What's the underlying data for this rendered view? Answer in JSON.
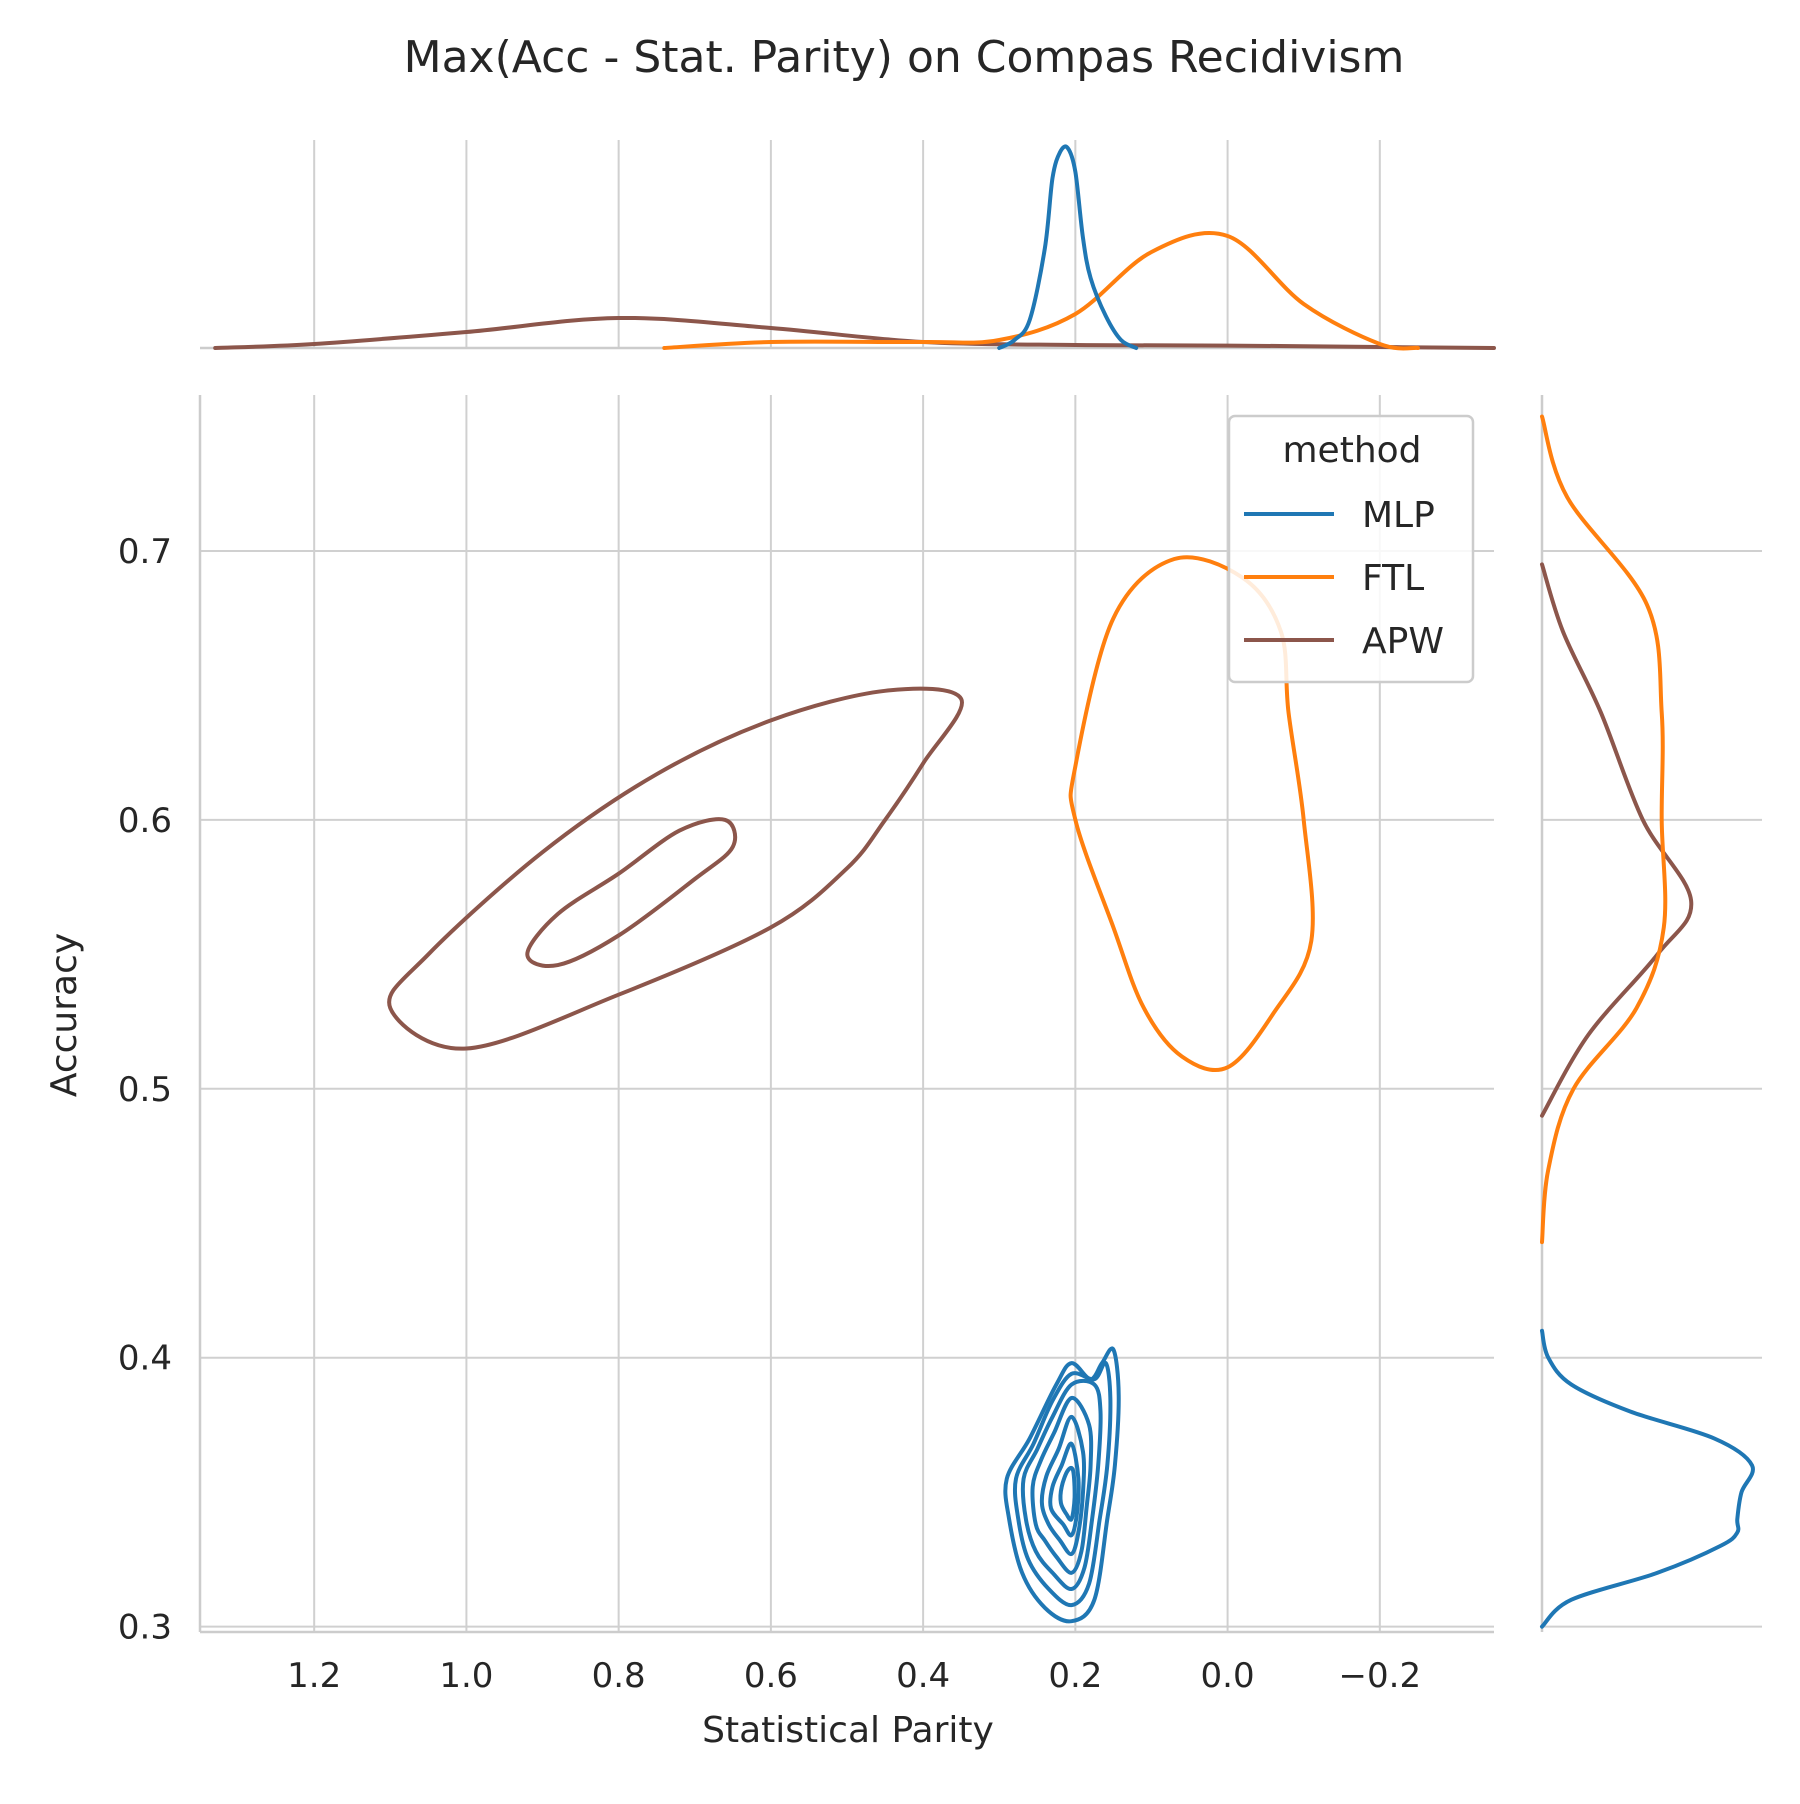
{
  "chart_data": {
    "type": "joint-kde",
    "title": "Max(Acc - Stat. Parity) on Compas Recidivism",
    "xlabel": "Statistical Parity",
    "ylabel": "Accuracy",
    "xlim": [
      1.35,
      -0.35
    ],
    "ylim": [
      0.298,
      0.758
    ],
    "x_ticks": [
      1.2,
      1.0,
      0.8,
      0.6,
      0.4,
      0.2,
      0.0,
      -0.2
    ],
    "x_tick_labels": [
      "1.2",
      "1.0",
      "0.8",
      "0.6",
      "0.4",
      "0.2",
      "0.0",
      "−0.2"
    ],
    "y_ticks": [
      0.3,
      0.4,
      0.5,
      0.6,
      0.7
    ],
    "y_tick_labels": [
      "0.3",
      "0.4",
      "0.5",
      "0.6",
      "0.7"
    ],
    "grid": true,
    "legend": {
      "title": "method",
      "position": "top-right",
      "entries": [
        {
          "label": "MLP",
          "color": "#1f77b4"
        },
        {
          "label": "FTL",
          "color": "#ff7f0e"
        },
        {
          "label": "APW",
          "color": "#8c564b"
        }
      ]
    },
    "series": [
      {
        "name": "MLP",
        "color": "#1f77b4",
        "joint_contours": [
          [
            [
              0.24,
              0.307
            ],
            [
              0.205,
              0.302
            ],
            [
              0.175,
              0.31
            ],
            [
              0.158,
              0.34
            ],
            [
              0.148,
              0.36
            ],
            [
              0.143,
              0.386
            ],
            [
              0.15,
              0.403
            ],
            [
              0.165,
              0.398
            ],
            [
              0.18,
              0.392
            ],
            [
              0.205,
              0.398
            ],
            [
              0.225,
              0.39
            ],
            [
              0.26,
              0.37
            ],
            [
              0.29,
              0.355
            ],
            [
              0.287,
              0.34
            ],
            [
              0.27,
              0.32
            ]
          ],
          [
            [
              0.235,
              0.314
            ],
            [
              0.205,
              0.308
            ],
            [
              0.182,
              0.316
            ],
            [
              0.168,
              0.34
            ],
            [
              0.158,
              0.36
            ],
            [
              0.154,
              0.384
            ],
            [
              0.16,
              0.398
            ],
            [
              0.175,
              0.392
            ],
            [
              0.205,
              0.394
            ],
            [
              0.23,
              0.384
            ],
            [
              0.255,
              0.368
            ],
            [
              0.278,
              0.355
            ],
            [
              0.275,
              0.34
            ],
            [
              0.262,
              0.325
            ]
          ],
          [
            [
              0.23,
              0.32
            ],
            [
              0.205,
              0.314
            ],
            [
              0.188,
              0.322
            ],
            [
              0.178,
              0.34
            ],
            [
              0.17,
              0.36
            ],
            [
              0.167,
              0.38
            ],
            [
              0.175,
              0.39
            ],
            [
              0.205,
              0.39
            ],
            [
              0.23,
              0.378
            ],
            [
              0.25,
              0.366
            ],
            [
              0.268,
              0.355
            ],
            [
              0.265,
              0.34
            ],
            [
              0.252,
              0.328
            ]
          ],
          [
            [
              0.225,
              0.326
            ],
            [
              0.205,
              0.32
            ],
            [
              0.192,
              0.328
            ],
            [
              0.185,
              0.345
            ],
            [
              0.18,
              0.36
            ],
            [
              0.182,
              0.375
            ],
            [
              0.205,
              0.385
            ],
            [
              0.228,
              0.372
            ],
            [
              0.245,
              0.362
            ],
            [
              0.256,
              0.352
            ],
            [
              0.252,
              0.338
            ],
            [
              0.24,
              0.332
            ]
          ],
          [
            [
              0.22,
              0.332
            ],
            [
              0.205,
              0.327
            ],
            [
              0.196,
              0.335
            ],
            [
              0.19,
              0.35
            ],
            [
              0.19,
              0.365
            ],
            [
              0.205,
              0.378
            ],
            [
              0.222,
              0.366
            ],
            [
              0.238,
              0.356
            ],
            [
              0.244,
              0.346
            ],
            [
              0.235,
              0.338
            ]
          ],
          [
            [
              0.216,
              0.338
            ],
            [
              0.205,
              0.334
            ],
            [
              0.198,
              0.342
            ],
            [
              0.196,
              0.355
            ],
            [
              0.205,
              0.368
            ],
            [
              0.218,
              0.36
            ],
            [
              0.23,
              0.352
            ],
            [
              0.232,
              0.344
            ]
          ],
          [
            [
              0.212,
              0.342
            ],
            [
              0.205,
              0.34
            ],
            [
              0.201,
              0.348
            ],
            [
              0.203,
              0.358
            ],
            [
              0.21,
              0.358
            ],
            [
              0.218,
              0.352
            ],
            [
              0.219,
              0.346
            ]
          ]
        ],
        "x_marginal": {
          "x": [
            0.3,
            0.28,
            0.26,
            0.24,
            0.23,
            0.22,
            0.21,
            0.2,
            0.19,
            0.18,
            0.16,
            0.14,
            0.12
          ],
          "density": [
            0.0,
            0.04,
            0.14,
            0.5,
            0.85,
            0.98,
            1.0,
            0.88,
            0.55,
            0.35,
            0.16,
            0.04,
            0.0
          ]
        },
        "y_marginal": {
          "y": [
            0.3,
            0.31,
            0.32,
            0.33,
            0.335,
            0.34,
            0.35,
            0.36,
            0.37,
            0.38,
            0.39,
            0.4,
            0.41
          ],
          "density": [
            0.0,
            0.14,
            0.55,
            0.85,
            0.93,
            0.93,
            0.95,
            1.0,
            0.82,
            0.42,
            0.14,
            0.03,
            0.0
          ]
        }
      },
      {
        "name": "FTL",
        "color": "#ff7f0e",
        "joint_contours": [
          [
            [
              0.0,
              0.508
            ],
            [
              -0.06,
              0.528
            ],
            [
              -0.11,
              0.555
            ],
            [
              -0.1,
              0.6
            ],
            [
              -0.08,
              0.64
            ],
            [
              -0.07,
              0.67
            ],
            [
              -0.02,
              0.69
            ],
            [
              0.07,
              0.697
            ],
            [
              0.15,
              0.675
            ],
            [
              0.2,
              0.62
            ],
            [
              0.2,
              0.6
            ],
            [
              0.15,
              0.56
            ],
            [
              0.11,
              0.53
            ],
            [
              0.06,
              0.512
            ]
          ]
        ],
        "x_marginal": {
          "x": [
            0.74,
            0.6,
            0.4,
            0.3,
            0.2,
            0.1,
            0.0,
            -0.1,
            -0.2,
            -0.25
          ],
          "density": [
            0.0,
            0.03,
            0.03,
            0.04,
            0.17,
            0.48,
            0.56,
            0.22,
            0.02,
            0.0
          ]
        },
        "y_marginal": {
          "y": [
            0.443,
            0.47,
            0.5,
            0.53,
            0.56,
            0.6,
            0.64,
            0.68,
            0.72,
            0.75
          ],
          "density": [
            0.0,
            0.03,
            0.15,
            0.45,
            0.58,
            0.57,
            0.57,
            0.5,
            0.12,
            0.0
          ]
        }
      },
      {
        "name": "APW",
        "color": "#8c564b",
        "joint_contours": [
          [
            [
              1.1,
              0.53
            ],
            [
              1.0,
              0.515
            ],
            [
              0.8,
              0.535
            ],
            [
              0.6,
              0.56
            ],
            [
              0.5,
              0.582
            ],
            [
              0.45,
              0.6
            ],
            [
              0.4,
              0.621
            ],
            [
              0.35,
              0.645
            ],
            [
              0.45,
              0.648
            ],
            [
              0.6,
              0.637
            ],
            [
              0.75,
              0.617
            ],
            [
              0.9,
              0.588
            ],
            [
              1.05,
              0.55
            ]
          ],
          [
            [
              0.92,
              0.55
            ],
            [
              0.88,
              0.546
            ],
            [
              0.8,
              0.557
            ],
            [
              0.7,
              0.578
            ],
            [
              0.65,
              0.59
            ],
            [
              0.66,
              0.6
            ],
            [
              0.72,
              0.596
            ],
            [
              0.8,
              0.58
            ],
            [
              0.88,
              0.565
            ]
          ]
        ],
        "x_marginal": {
          "x": [
            1.33,
            1.2,
            1.0,
            0.8,
            0.6,
            0.4,
            0.2,
            0.0,
            -0.2,
            -0.35
          ],
          "density": [
            0.0,
            0.02,
            0.08,
            0.15,
            0.1,
            0.03,
            0.015,
            0.012,
            0.005,
            0.0
          ]
        },
        "y_marginal": {
          "y": [
            0.49,
            0.52,
            0.55,
            0.57,
            0.6,
            0.64,
            0.67,
            0.695
          ],
          "density": [
            0.0,
            0.22,
            0.55,
            0.71,
            0.48,
            0.28,
            0.1,
            0.0
          ]
        }
      }
    ]
  }
}
